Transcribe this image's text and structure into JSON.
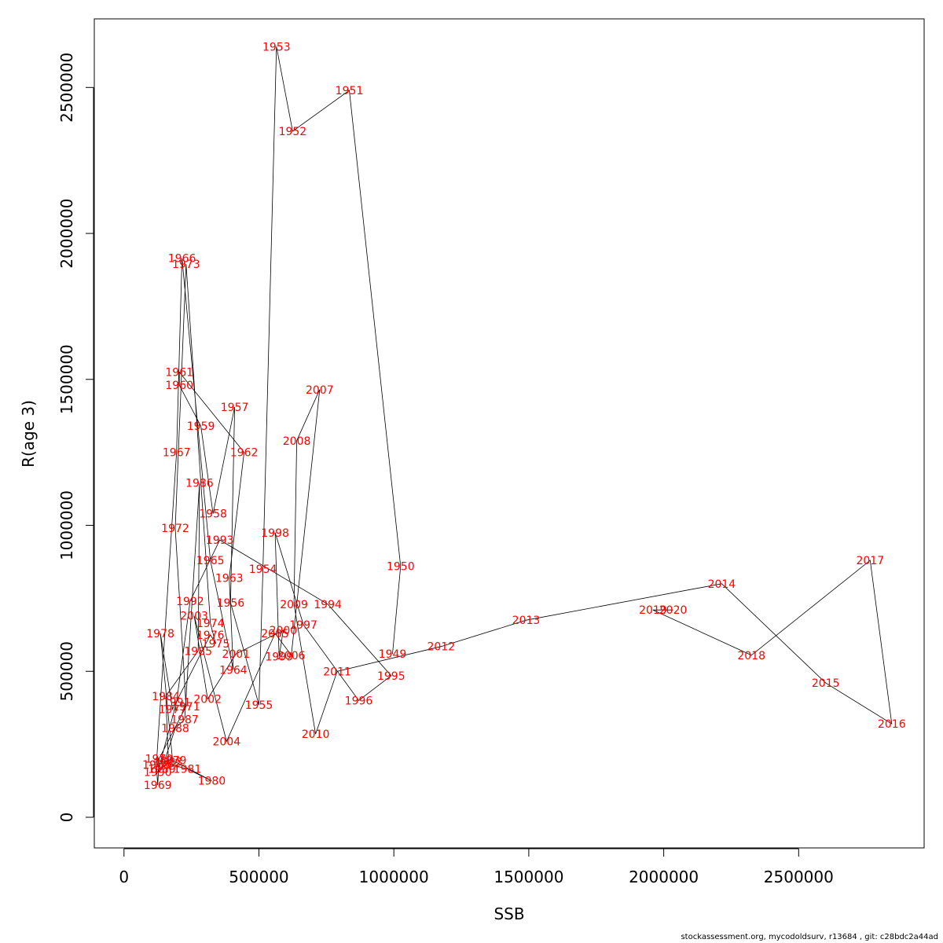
{
  "chart_data": {
    "type": "line",
    "xlabel": "SSB",
    "ylabel": "R(age 3)",
    "xlim": [
      -110000,
      2965000
    ],
    "ylim": [
      -105000,
      2735000
    ],
    "x_ticks": [
      0,
      500000,
      1000000,
      1500000,
      2000000,
      2500000
    ],
    "y_ticks": [
      0,
      500000,
      1000000,
      1500000,
      2000000,
      2500000
    ],
    "line_color": "#000000",
    "label_color": "#ff0000",
    "grid": false,
    "points": [
      {
        "year": "1949",
        "x": 995000,
        "y": 560000
      },
      {
        "year": "1950",
        "x": 1025000,
        "y": 860000
      },
      {
        "year": "1951",
        "x": 835000,
        "y": 2490000
      },
      {
        "year": "1952",
        "x": 625000,
        "y": 2350000
      },
      {
        "year": "1953",
        "x": 565000,
        "y": 2640000
      },
      {
        "year": "1954",
        "x": 515000,
        "y": 850000
      },
      {
        "year": "1955",
        "x": 500000,
        "y": 385000
      },
      {
        "year": "1956",
        "x": 395000,
        "y": 735000
      },
      {
        "year": "1957",
        "x": 410000,
        "y": 1405000
      },
      {
        "year": "1958",
        "x": 330000,
        "y": 1040000
      },
      {
        "year": "1959",
        "x": 285000,
        "y": 1340000
      },
      {
        "year": "1960",
        "x": 205000,
        "y": 1480000
      },
      {
        "year": "1961",
        "x": 205000,
        "y": 1525000
      },
      {
        "year": "1962",
        "x": 445000,
        "y": 1250000
      },
      {
        "year": "1963",
        "x": 390000,
        "y": 820000
      },
      {
        "year": "1964",
        "x": 405000,
        "y": 505000
      },
      {
        "year": "1965",
        "x": 320000,
        "y": 880000
      },
      {
        "year": "1966",
        "x": 215000,
        "y": 1915000
      },
      {
        "year": "1967",
        "x": 195000,
        "y": 1250000
      },
      {
        "year": "1968",
        "x": 120000,
        "y": 180000
      },
      {
        "year": "1969",
        "x": 125000,
        "y": 110000
      },
      {
        "year": "1970",
        "x": 130000,
        "y": 200000
      },
      {
        "year": "1971",
        "x": 230000,
        "y": 380000
      },
      {
        "year": "1972",
        "x": 190000,
        "y": 990000
      },
      {
        "year": "1973",
        "x": 230000,
        "y": 1895000
      },
      {
        "year": "1974",
        "x": 320000,
        "y": 665000
      },
      {
        "year": "1975",
        "x": 340000,
        "y": 595000
      },
      {
        "year": "1976",
        "x": 320000,
        "y": 625000
      },
      {
        "year": "1977",
        "x": 180000,
        "y": 370000
      },
      {
        "year": "1978",
        "x": 135000,
        "y": 630000
      },
      {
        "year": "1979",
        "x": 180000,
        "y": 195000
      },
      {
        "year": "1980",
        "x": 325000,
        "y": 125000
      },
      {
        "year": "1981",
        "x": 235000,
        "y": 165000
      },
      {
        "year": "1982",
        "x": 160000,
        "y": 185000
      },
      {
        "year": "1983",
        "x": 165000,
        "y": 190000
      },
      {
        "year": "1984",
        "x": 155000,
        "y": 415000
      },
      {
        "year": "1985",
        "x": 275000,
        "y": 570000
      },
      {
        "year": "1986",
        "x": 280000,
        "y": 1145000
      },
      {
        "year": "1987",
        "x": 225000,
        "y": 335000
      },
      {
        "year": "1988",
        "x": 190000,
        "y": 305000
      },
      {
        "year": "1989",
        "x": 140000,
        "y": 165000
      },
      {
        "year": "1990",
        "x": 125000,
        "y": 155000
      },
      {
        "year": "1991",
        "x": 195000,
        "y": 395000
      },
      {
        "year": "1992",
        "x": 245000,
        "y": 740000
      },
      {
        "year": "1993",
        "x": 355000,
        "y": 950000
      },
      {
        "year": "1994",
        "x": 755000,
        "y": 730000
      },
      {
        "year": "1995",
        "x": 990000,
        "y": 485000
      },
      {
        "year": "1996",
        "x": 870000,
        "y": 400000
      },
      {
        "year": "1997",
        "x": 665000,
        "y": 660000
      },
      {
        "year": "1998",
        "x": 560000,
        "y": 975000
      },
      {
        "year": "1999",
        "x": 575000,
        "y": 550000
      },
      {
        "year": "2000",
        "x": 590000,
        "y": 640000
      },
      {
        "year": "2001",
        "x": 415000,
        "y": 560000
      },
      {
        "year": "2002",
        "x": 310000,
        "y": 405000
      },
      {
        "year": "2003",
        "x": 260000,
        "y": 690000
      },
      {
        "year": "2004",
        "x": 380000,
        "y": 260000
      },
      {
        "year": "2005",
        "x": 560000,
        "y": 630000
      },
      {
        "year": "2006",
        "x": 620000,
        "y": 555000
      },
      {
        "year": "2007",
        "x": 725000,
        "y": 1465000
      },
      {
        "year": "2008",
        "x": 640000,
        "y": 1290000
      },
      {
        "year": "2009",
        "x": 630000,
        "y": 730000
      },
      {
        "year": "2010",
        "x": 710000,
        "y": 285000
      },
      {
        "year": "2011",
        "x": 790000,
        "y": 500000
      },
      {
        "year": "2012",
        "x": 1175000,
        "y": 585000
      },
      {
        "year": "2013",
        "x": 1490000,
        "y": 675000
      },
      {
        "year": "2014",
        "x": 2215000,
        "y": 800000
      },
      {
        "year": "2015",
        "x": 2600000,
        "y": 460000
      },
      {
        "year": "2016",
        "x": 2845000,
        "y": 320000
      },
      {
        "year": "2017",
        "x": 2765000,
        "y": 880000
      },
      {
        "year": "2018",
        "x": 2325000,
        "y": 555000
      },
      {
        "year": "2019",
        "x": 1960000,
        "y": 710000
      },
      {
        "year": "2020",
        "x": 2035000,
        "y": 710000
      }
    ]
  },
  "footer": "stockassessment.org, mycodoldsurv, r13684 , git: c28bdc2a44ad"
}
